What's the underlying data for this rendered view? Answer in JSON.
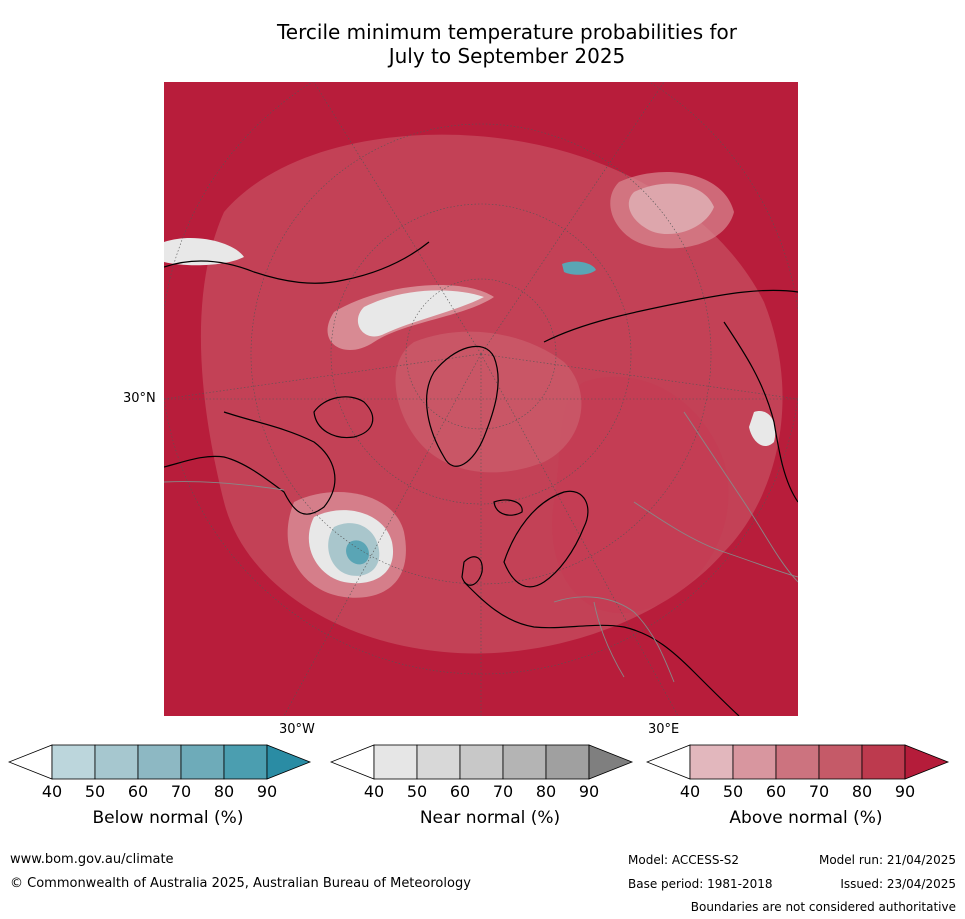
{
  "title_line1": "Tercile minimum temperature probabilities for",
  "title_line2": "July to September 2025",
  "map": {
    "lat_label": "30°N",
    "lon_label_west": "30°W",
    "lon_label_east": "30°E",
    "colors": {
      "above_90": "#b81d3b",
      "above_80": "#c43a53",
      "above_70": "#cc5f6e",
      "above_60": "#d88a93",
      "above_50": "#e3b3b8",
      "near": "#e8e8e8",
      "below_50": "#a9c6cc",
      "below_80": "#5aa5b5"
    }
  },
  "colorbars": [
    {
      "title": "Below normal (%)",
      "ticks": [
        "40",
        "50",
        "60",
        "70",
        "80",
        "90"
      ],
      "colors": [
        "#ffffff",
        "#bcd6dc",
        "#a6c7cf",
        "#8db8c3",
        "#6eabb9",
        "#4b9eb0",
        "#2a8ca4"
      ]
    },
    {
      "title": "Near normal (%)",
      "ticks": [
        "40",
        "50",
        "60",
        "70",
        "80",
        "90"
      ],
      "colors": [
        "#ffffff",
        "#e6e6e6",
        "#d8d8d8",
        "#c8c8c8",
        "#b4b4b4",
        "#a0a0a0",
        "#7f7f7f"
      ]
    },
    {
      "title": "Above normal (%)",
      "ticks": [
        "40",
        "50",
        "60",
        "70",
        "80",
        "90"
      ],
      "colors": [
        "#ffffff",
        "#e2b7bd",
        "#d8969f",
        "#cc737f",
        "#c55a68",
        "#bd3a4e",
        "#b51c3a"
      ]
    }
  ],
  "footer": {
    "website": "www.bom.gov.au/climate",
    "copyright": "© Commonwealth of Australia 2025, Australian Bureau of Meteorology",
    "model": "Model: ACCESS-S2",
    "model_run": "Model run: 21/04/2025",
    "base_period": "Base period: 1981-2018",
    "issued": "Issued: 23/04/2025",
    "disclaimer": "Boundaries are not considered authoritative"
  }
}
